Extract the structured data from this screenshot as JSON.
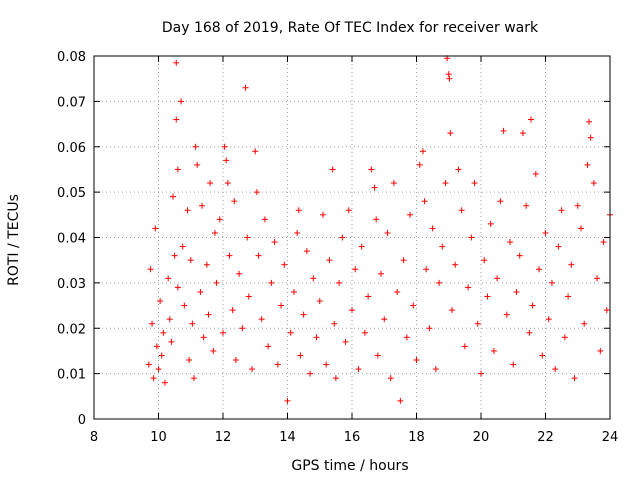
{
  "chart_data": {
    "type": "scatter",
    "title": "Day 168 of 2019, Rate Of TEC Index for receiver wark",
    "xlabel": "GPS time / hours",
    "ylabel": "ROTI / TECUs",
    "xlim": [
      8,
      24
    ],
    "ylim": [
      0,
      0.08
    ],
    "xticks": [
      "8",
      "10",
      "12",
      "14",
      "16",
      "18",
      "20",
      "22",
      "24"
    ],
    "yticks": [
      "0",
      "0.01",
      "0.02",
      "0.03",
      "0.04",
      "0.05",
      "0.06",
      "0.07",
      "0.08"
    ],
    "grid": true,
    "marker": "plus",
    "color": "#ff0000",
    "series": [
      {
        "points": [
          [
            9.7,
            0.012
          ],
          [
            9.75,
            0.033
          ],
          [
            9.8,
            0.021
          ],
          [
            9.85,
            0.009
          ],
          [
            9.9,
            0.042
          ],
          [
            9.95,
            0.016
          ],
          [
            10.0,
            0.011
          ],
          [
            10.05,
            0.026
          ],
          [
            10.1,
            0.014
          ],
          [
            10.15,
            0.019
          ],
          [
            10.2,
            0.008
          ],
          [
            10.3,
            0.031
          ],
          [
            10.35,
            0.022
          ],
          [
            10.4,
            0.017
          ],
          [
            10.45,
            0.049
          ],
          [
            10.5,
            0.036
          ],
          [
            10.55,
            0.0785
          ],
          [
            10.55,
            0.066
          ],
          [
            10.6,
            0.055
          ],
          [
            10.6,
            0.029
          ],
          [
            10.7,
            0.07
          ],
          [
            10.75,
            0.038
          ],
          [
            10.8,
            0.025
          ],
          [
            10.9,
            0.046
          ],
          [
            10.95,
            0.013
          ],
          [
            11.0,
            0.035
          ],
          [
            11.05,
            0.021
          ],
          [
            11.1,
            0.009
          ],
          [
            11.15,
            0.06
          ],
          [
            11.2,
            0.056
          ],
          [
            11.3,
            0.028
          ],
          [
            11.35,
            0.047
          ],
          [
            11.4,
            0.018
          ],
          [
            11.5,
            0.034
          ],
          [
            11.55,
            0.023
          ],
          [
            11.6,
            0.052
          ],
          [
            11.7,
            0.015
          ],
          [
            11.75,
            0.041
          ],
          [
            11.8,
            0.03
          ],
          [
            11.9,
            0.044
          ],
          [
            12.0,
            0.019
          ],
          [
            12.05,
            0.06
          ],
          [
            12.1,
            0.057
          ],
          [
            12.15,
            0.052
          ],
          [
            12.2,
            0.036
          ],
          [
            12.3,
            0.024
          ],
          [
            12.35,
            0.048
          ],
          [
            12.4,
            0.013
          ],
          [
            12.5,
            0.032
          ],
          [
            12.6,
            0.02
          ],
          [
            12.7,
            0.073
          ],
          [
            12.75,
            0.04
          ],
          [
            12.8,
            0.027
          ],
          [
            12.9,
            0.011
          ],
          [
            13.0,
            0.059
          ],
          [
            13.05,
            0.05
          ],
          [
            13.1,
            0.036
          ],
          [
            13.2,
            0.022
          ],
          [
            13.3,
            0.044
          ],
          [
            13.4,
            0.016
          ],
          [
            13.5,
            0.03
          ],
          [
            13.6,
            0.039
          ],
          [
            13.7,
            0.012
          ],
          [
            13.8,
            0.025
          ],
          [
            13.9,
            0.034
          ],
          [
            14.0,
            0.004
          ],
          [
            14.1,
            0.019
          ],
          [
            14.2,
            0.028
          ],
          [
            14.3,
            0.041
          ],
          [
            14.35,
            0.046
          ],
          [
            14.4,
            0.014
          ],
          [
            14.5,
            0.023
          ],
          [
            14.6,
            0.037
          ],
          [
            14.7,
            0.01
          ],
          [
            14.8,
            0.031
          ],
          [
            14.9,
            0.018
          ],
          [
            15.0,
            0.026
          ],
          [
            15.1,
            0.045
          ],
          [
            15.2,
            0.012
          ],
          [
            15.3,
            0.035
          ],
          [
            15.4,
            0.055
          ],
          [
            15.45,
            0.021
          ],
          [
            15.5,
            0.009
          ],
          [
            15.6,
            0.03
          ],
          [
            15.7,
            0.04
          ],
          [
            15.8,
            0.017
          ],
          [
            15.9,
            0.046
          ],
          [
            16.0,
            0.024
          ],
          [
            16.1,
            0.033
          ],
          [
            16.2,
            0.011
          ],
          [
            16.3,
            0.038
          ],
          [
            16.4,
            0.019
          ],
          [
            16.5,
            0.027
          ],
          [
            16.6,
            0.055
          ],
          [
            16.7,
            0.051
          ],
          [
            16.75,
            0.044
          ],
          [
            16.8,
            0.014
          ],
          [
            16.9,
            0.032
          ],
          [
            17.0,
            0.022
          ],
          [
            17.1,
            0.041
          ],
          [
            17.2,
            0.009
          ],
          [
            17.3,
            0.052
          ],
          [
            17.4,
            0.028
          ],
          [
            17.5,
            0.004
          ],
          [
            17.6,
            0.035
          ],
          [
            17.7,
            0.018
          ],
          [
            17.8,
            0.045
          ],
          [
            17.9,
            0.025
          ],
          [
            18.0,
            0.013
          ],
          [
            18.1,
            0.056
          ],
          [
            18.2,
            0.059
          ],
          [
            18.25,
            0.048
          ],
          [
            18.3,
            0.033
          ],
          [
            18.4,
            0.02
          ],
          [
            18.5,
            0.042
          ],
          [
            18.6,
            0.011
          ],
          [
            18.7,
            0.03
          ],
          [
            18.8,
            0.038
          ],
          [
            18.9,
            0.052
          ],
          [
            18.95,
            0.0795
          ],
          [
            19.0,
            0.076
          ],
          [
            19.02,
            0.075
          ],
          [
            19.05,
            0.063
          ],
          [
            19.1,
            0.024
          ],
          [
            19.2,
            0.034
          ],
          [
            19.3,
            0.055
          ],
          [
            19.4,
            0.046
          ],
          [
            19.5,
            0.016
          ],
          [
            19.6,
            0.029
          ],
          [
            19.7,
            0.04
          ],
          [
            19.8,
            0.052
          ],
          [
            19.9,
            0.021
          ],
          [
            20.0,
            0.01
          ],
          [
            20.1,
            0.035
          ],
          [
            20.2,
            0.027
          ],
          [
            20.3,
            0.043
          ],
          [
            20.4,
            0.015
          ],
          [
            20.5,
            0.031
          ],
          [
            20.6,
            0.048
          ],
          [
            20.7,
            0.0635
          ],
          [
            20.8,
            0.023
          ],
          [
            20.9,
            0.039
          ],
          [
            21.0,
            0.012
          ],
          [
            21.1,
            0.028
          ],
          [
            21.2,
            0.036
          ],
          [
            21.3,
            0.063
          ],
          [
            21.4,
            0.047
          ],
          [
            21.5,
            0.019
          ],
          [
            21.55,
            0.066
          ],
          [
            21.6,
            0.025
          ],
          [
            21.7,
            0.054
          ],
          [
            21.8,
            0.033
          ],
          [
            21.9,
            0.014
          ],
          [
            22.0,
            0.041
          ],
          [
            22.1,
            0.022
          ],
          [
            22.2,
            0.03
          ],
          [
            22.3,
            0.011
          ],
          [
            22.4,
            0.038
          ],
          [
            22.5,
            0.046
          ],
          [
            22.6,
            0.018
          ],
          [
            22.7,
            0.027
          ],
          [
            22.8,
            0.034
          ],
          [
            22.9,
            0.009
          ],
          [
            23.0,
            0.047
          ],
          [
            23.1,
            0.042
          ],
          [
            23.2,
            0.021
          ],
          [
            23.3,
            0.056
          ],
          [
            23.35,
            0.0655
          ],
          [
            23.4,
            0.062
          ],
          [
            23.5,
            0.052
          ],
          [
            23.6,
            0.031
          ],
          [
            23.7,
            0.015
          ],
          [
            23.8,
            0.039
          ],
          [
            23.9,
            0.024
          ],
          [
            24.0,
            0.045
          ]
        ]
      }
    ]
  }
}
